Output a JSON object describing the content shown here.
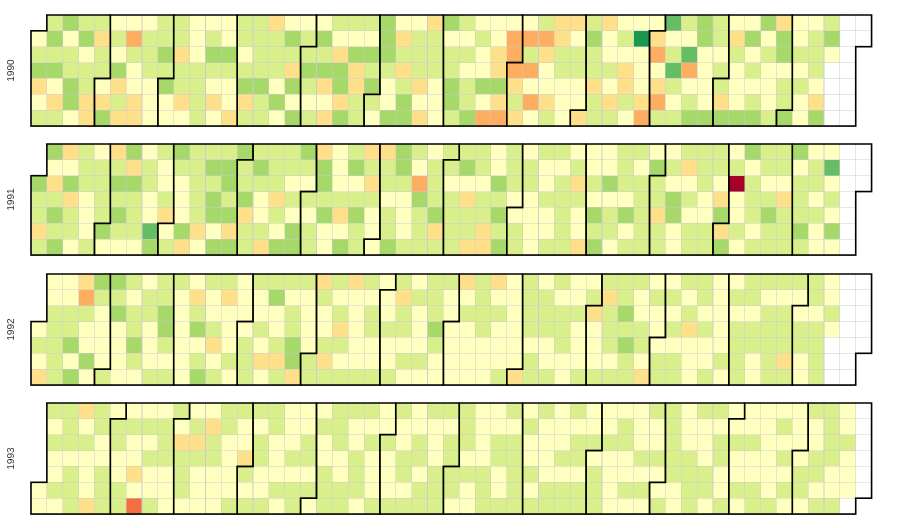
{
  "chart_data": {
    "type": "heatmap",
    "layout": "calendar",
    "first_year": 1990,
    "years": [
      "1990",
      "1991",
      "1992",
      "1993"
    ],
    "values_per_day": "percent change, one value per calendar day, listed January to December",
    "color_scale": {
      "domain": [
        -0.05,
        0.05
      ],
      "colors": [
        "#a50026",
        "#d73027",
        "#f46d43",
        "#fdae61",
        "#fee08b",
        "#ffffbf",
        "#d9ef8b",
        "#a6d96a",
        "#66bd63",
        "#1a9850",
        "#006837"
      ]
    },
    "series": [
      {
        "name": "1990",
        "values": "0.0045,0.0069,0.0137,-0.0135,-0.0023,0.0128,0.0129,0.0163,0.0123,0.0158,0.0032,-0.0094,0.0112,0.0163,0.0018,0.0058,0.0087,0.0154,0.0149,0.0014,0.0083,0.0160,0.0018,0.0114,0.0126,-0.0056,-0.0060,0.0126,-0.0129,0.0062,0.0079,0.0008,-0.0061,0.0157,0.0005,0.0128,-0.0016,0.0160,-0.0104,0.0085,-0.0061,0.0020,-0.0176,0.0133,-0.0024,0.0013,-0.0105,-0.0065,-0.0001,0.0096,0.0103,0.0125,-0.0034,-0.0021,0.0025,0.0059,0.0051,0.0166,0.0097,0.0143,-0.0020,0.0030,0.0050,0.0088,-0.0081,0.0062,0.0115,-0.0109,-0.0014,0.0003,0.0009,0.0030,0.0109,0.0093,0.0122,0.0132,-0.0027,0.0082,0.0151,0.0075,0.0003,-0.0096,0.0039,-0.0037,0.0042,0.0177,0.0101,-0.0020,0.0017,-0.0062,0.0111,0.0084,-0.0016,0.0114,0.0152,-0.0071,0.0134,0.0096,0.0072,0.0076,0.0064,0.0165,0.0097,0.0059,-0.0083,0.0131,0.0124,0.0111,-0.0041,0.0140,0.0017,0.0045,0.0172,0.0050,-0.0073,0.0176,-0.0019,0.0168,0.0026,0.0080,0.0063,0.0166,0.0085,0.0014,0.0079,-0.0027,0.0152,0.0092,0.0177,-0.0071,-0.0003,-0.0047,0.0133,-0.0029,-0.0090,0.0142,0.0176,-0.0056,0.0161,0.0079,0.0027,0.0147,-0.0066,-0.0075,0.0108,0.0052,0.0136,0.0006,0.0173,0.0099,0.0146,0.0054,0.0009,0.0140,0.0164,0.0159,0.0098,0.0043,0.0043,0.0159,0.0026,-0.0106,0.0089,-0.0050,0.0122,0.0144,0.0154,0.0013,0.0075,0.0059,0.0129,-0.0082,0.0005,-0.0066,-0.0052,0.0125,0.0082,0.0126,0.0034,0.0015,0.0010,0.0145,0.0011,0.0113,0.0069,0.0169,0.0171,0.0073,0.0131,0.0029,0.0054,-0.0021,0.0130,0.0084,0.0140,0.0012,0.0058,-0.0013,-0.0042,0.0173,-0.0001,-0.0146,0.0039,-0.0002,-0.0135,-0.0135,0.0144,-0.0058,-0.0152,0.0003,-0.0161,-0.0218,-0.0156,-0.0102,0.0059,-0.0084,-0.0031,-0.0199,0.0052,-0.0171,-0.0002,-0.0150,0.0032,0.0083,-0.0186,-0.0095,-0.0005,-0.0004,-0.0135,0.0108,-0.0136,-0.0101,0.0067,0.0113,-0.0031,-0.0040,0.0026,-0.0093,0.0015,0.0067,0.0136,-0.0004,0.0012,-0.0111,0.0118,0.0141,0.0102,0.0126,-0.0100,0.0098,0.0109,-0.0083,0.0009,0.0031,0.0064,0.0010,-0.0075,0.0110,-0.0005,0.0134,-0.0022,-0.0116,-0.0121,0.0130,-0.0041,0.0000,0.0330,0.0025,0.0017,-0.0017,-0.0094,-0.0211,-0.0035,-0.0133,-0.0144,0.0042,-0.0128,-0.0154,0.0073,0.0263,-0.0043,0.0085,0.0274,0.0086,-0.0021,0.0068,0.0077,0.0026,0.0300,-0.0176,0.0027,0.0109,0.0158,0.0170,0.0167,0.0034,0.0023,-0.0032,-0.0015,0.0149,0.0056,0.0110,0.0022,0.0072,0.0050,-0.0089,0.0150,0.0034,-0.0050,0.0130,0.0006,0.0013,-0.0033,0.0143,0.0006,0.0166,-0.0017,0.0105,0.0004,0.0124,0.0160,0.0180,-0.0045,0.0135,-0.0024,0.0011,0.0026,0.0074,-0.0064,0.0157,0.0178,0.0036,0.0096,0.0103,0.0179,0.0039,0.0043,0.0106,0.0006,0.0134,-0.0003,0.0013,0.0016,0.0130,0.0099,0.0066,0.0014,-0.0099,0.0170,0.0051,0.0156,-0.0032"
      },
      {
        "name": "1991",
        "values": "0.0164,0.0069,0.0116,-0.0087,0.0104,0.0153,0.0029,-0.0067,0.0062,0.0162,0.0086,0.0146,-0.0052,0.0030,0.0139,-0.0121,0.0125,0.0124,0.0036,0.0130,0.0056,0.0093,0.0019,0.0041,0.0001,0.0134,0.0031,0.0083,0.0101,0.0072,0.0066,0.0167,0.0002,-0.0073,0.0095,0.0142,0.0116,0.0141,0.0102,0.0039,0.0145,-0.0053,0.0148,0.0085,0.0127,0.0097,0.0024,-0.0003,0.0133,0.0057,0.0036,0.0009,0.0274,0.0151,0.0058,0.0032,0.0000,0.0106,-0.0074,0.0010,0.0105,0.0172,0.0081,0.0005,0.0004,0.0005,0.0171,-0.0073,0.0088,0.0126,0.0049,0.0093,0.0050,-0.0122,-0.0035,0.0130,0.0139,0.0132,0.0164,0.0177,0.0006,0.0149,0.0095,0.0161,0.0167,0.0102,0.0145,-0.0061,0.0169,0.0161,0.0064,0.0074,0.0159,-0.0112,0.0125,0.0071,0.0049,0.0160,0.0102,0.0021,-0.0015,0.0101,-0.0118,0.0063,0.0080,0.0100,-0.0117,0.0109,-0.0015,0.0147,0.0085,0.0096,0.0012,0.0064,0.0041,0.0159,0.0161,0.0142,0.0112,0.0032,0.0059,-0.0030,0.0092,0.0124,-0.0136,0.0169,0.0154,0.0114,0.0165,0.0030,0.0007,-0.0001,0.0025,0.0021,0.0121,-0.0053,0.0016,0.0166,0.0085,0.0145,0.0033,0.0078,0.0166,0.0126,0.0129,-0.0061,0.0104,-0.0046,0.0124,0.0014,0.0030,0.0043,-0.0080,0.0123,0.0103,0.0005,0.0047,0.0108,0.0172,0.0166,0.0138,0.0097,0.0037,0.0031,0.0007,0.0051,0.0111,0.0019,-0.0162,0.0160,0.0079,0.0134,0.0057,0.0027,0.0077,0.0076,0.0122,0.0149,-0.0053,0.0116,0.0104,0.0095,0.0000,0.0090,0.0109,0.0061,0.0110,0.0060,0.0149,0.0011,-0.0046,0.0107,0.0061,-0.0048,0.0087,0.0115,0.0025,0.0108,0.0109,-0.0051,-0.0087,0.0008,0.0019,0.0162,0.0073,0.0158,0.0125,0.0154,0.0122,0.0073,0.0118,0.0016,0.0011,0.0047,0.0125,0.0039,0.0102,0.0082,0.0018,0.0003,0.0019,-0.0033,0.0106,0.0016,0.0006,0.0092,-0.0011,0.0013,0.0133,0.0129,0.0004,0.0134,0.0101,0.0076,0.0112,0.0125,-0.0003,0.0069,-0.0091,0.0059,0.0008,-0.0032,-0.0047,0.0023,-0.0002,0.0136,0.0009,0.0163,0.0061,0.0139,-0.0039,0.0002,0.0146,0.0017,0.0054,0.0071,0.0041,0.0076,0.0124,0.0068,0.0012,0.0151,-0.0011,0.0100,0.0060,-0.0012,0.0134,0.0126,0.0075,0.0080,0.0093,-0.0011,0.0144,0.0057,0.0133,-0.0069,0.0058,0.0064,0.0001,0.0120,0.0031,0.0172,0.0149,0.0033,0.0003,0.0059,-0.0080,0.0026,0.0136,0.0015,0.0084,0.0116,0.0118,0.0075,0.0062,-0.0001,0.0039,0.0085,0.0085,0.0056,0.0075,0.0025,-0.0077,0.0146,-0.0061,0.0161,0.0022,0.0130,-0.0454,0.0013,-0.0034,0.0102,-0.0012,0.0161,0.0045,0.0058,0.0124,0.0114,0.0015,0.0054,0.0049,0.0089,-0.0025,0.0130,0.0151,0.0093,0.0098,0.0123,0.0123,0.0020,-0.0058,0.0093,0.0106,0.0097,0.0168,0.0013,0.0097,0.0131,0.0096,0.0145,0.0104,-0.0008,0.0130,0.0059,0.0039,0.0055,0.0008,0.0016,0.0001,0.0295,0.0009,0.0072,0.0007,0.0160,-0.0002"
      },
      {
        "name": "1992",
        "values": "0.0038,0.0108,-0.0008,-0.0049,0.0007,-0.0014,0.0055,0.0050,0.0123,0.0070,0.0073,-0.0013,-0.0017,0.0125,0.0091,0.0154,0.0040,0.0137,-0.0089,-0.0160,0.0132,0.0030,0.0040,0.0159,0.0041,0.0162,0.0133,-0.0008,0.0027,-0.0002,0.0037,0.0076,0.0153,0.0111,0.0170,0.0018,0.0037,0.0009,0.0037,0.0121,0.0009,0.0072,0.0088,0.0145,0.0059,0.0025,0.0026,0.0102,0.0072,0.0017,0.0040,0.0039,0.0064,0.0050,0.0108,0.0145,0.0153,0.0116,-0.0014,0.0049,0.0098,-0.0024,-0.0018,0.0045,-0.0003,-0.0002,0.0033,0.0033,-0.0064,0.0104,0.0165,0.0026,0.0067,0.0162,0.0111,0.0023,0.0017,0.0115,-0.0050,0.0025,0.0069,0.0122,-0.0066,0.0024,0.0034,0.0023,0.0105,0.0041,0.0043,0.0013,0.0043,0.0045,0.0063,0.0075,0.0111,0.0056,-0.0037,0.0036,0.0105,0.0023,-0.0049,0.0038,0.0049,0.0164,0.0041,0.0021,0.0086,-0.0133,0.0095,0.0068,0.0023,0.0111,0.0051,0.0142,0.0221,-0.0047,0.0095,0.0002,0.0033,-0.0015,0.0009,0.0121,0.0102,-0.0062,0.0072,0.0008,0.0003,0.0075,-0.0047,0.0048,0.0097,0.0004,0.0063,-0.0046,0.0101,0.0044,0.0083,-0.0048,0.0029,0.0023,0.0017,0.0010,-0.0032,0.0070,0.0093,-0.0016,0.0057,0.0088,-0.0005,0.0011,0.0052,0.0008,0.0044,0.0042,0.0111,0.0042,0.0009,0.0116,0.0124,-0.0083,0.0082,0.0061,0.0040,0.0058,0.0021,0.0014,0.0069,0.0037,0.0034,0.0021,0.0058,0.0006,0.0072,0.0122,0.0122,0.0137,0.0114,0.0012,0.0025,0.0053,0.0041,-0.0010,0.0010,0.0039,0.0005,0.0008,-0.0053,0.0033,0.0098,0.0041,0.0021,0.0007,0.0001,0.0057,0.0126,0.0079,0.0086,-0.0003,-0.0013,0.0036,-0.0050,0.0002,0.0074,0.0029,0.0015,0.0019,0.0128,0.0012,0.0044,0.0017,-0.0022,0.0023,0.0007,-0.0088,0.0112,0.0064,0.0114,0.0068,0.0034,0.0084,0.0077,-0.0041,0.0106,0.0079,0.0081,0.0022,0.0011,0.0088,0.0053,0.0033,0.0079,0.0119,0.0067,0.0037,0.0018,0.0031,-0.0027,0.0079,0.0013,0.0027,-0.0023,0.0101,0.0016,0.0050,-0.0063,0.0042,-0.0034,0.0021,0.0066,0.0102,-0.0061,0.0067,0.0061,0.0116,0.0036,0.0051,0.0059,0.0106,0.0167,0.0081,0.0143,0.0106,0.0113,0.0062,0.0035,0.0029,0.0077,0.0080,0.0036,-0.0056,0.0004,0.0110,-0.0013,0.0026,0.0040,0.0061,0.0104,0.0008,0.0105,0.0008,0.0095,0.0034,0.0062,0.0060,0.0047,0.0012,0.0097,-0.0119,0.0035,0.0041,0.0021,0.0114,0.0119,0.0031,0.0136,0.0014,0.0022,0.0132,0.0011,-0.0009,0.0038,0.0031,0.0041,0.0078,0.0025,-0.0040,0.0066,0.0021,0.0064,0.0075,0.0089,0.0099,0.0089,0.0062,0.0017,0.0058,0.0127,0.0017,-0.0020,0.0117,0.0001,0.0086,0.0084,0.0099,0.0070,0.0084,0.0064,0.0039,0.0094,0.0097,0.0122,-0.0062,0.0091,0.0117,0.0034,0.0045,0.0054,0.0084,0.0042,0.0008,0.0066,0.0121,0.0044,0.0066,0.0064,0.0054,0.0048,-0.0034,-0.0015,0.0094,-0.0007"
      },
      {
        "name": "1993",
        "values": "0.0003,0.0031,0.0077,0.0045,0.0079,-0.0041,0.0034,0.0104,-0.0004,0.0052,0.0063,0.0108,0.0021,0.0059,0.0085,0.0055,-0.0060,0.0045,0.0073,-0.0014,0.0036,0.0043,-0.0055,0.0102,0.0118,0.0012,0.0025,0.0085,0.0055,0.0091,0.0011,0.0073,0.0065,-0.0043,0.0013,0.0085,0.0053,-0.0024,0.0084,0.0004,-0.0023,-0.0089,0.0016,-0.0302,0.0039,0.0059,0.0029,0.0058,0.0040,0.0003,0.0078,0.0032,0.0055,0.0104,0.0094,0.0008,0.0033,0.0041,0.0070,0.0019,-0.0072,0.0052,0.0117,0.0129,0.0029,-0.0002,0.0072,-0.0054,0.0075,0.0043,0.0037,0.0004,0.0044,-0.0053,0.0083,0.0061,0.0030,0.0033,-0.0029,0.0065,0.0102,0.0010,0.0026,0.0034,-0.0030,0.0068,0.0056,0.0003,0.0040,-0.0051,0.0104,-0.0012,0.0101,0.0102,0.0044,0.0063,0.0069,-0.0008,0.0042,0.0052,0.0106,0.0072,0.0023,-0.0042,0.0038,0.0114,0.0017,0.0037,-0.0018,-0.0023,0.0074,0.0039,0.0060,0.0066,0.0039,-0.0011,0.0055,0.0136,0.0019,0.0057,0.0021,0.0025,0.0075,0.0036,0.0006,0.0055,0.0058,0.0049,0.0105,0.0053,0.0056,0.0013,0.0001,0.0069,0.0133,0.0060,0.0036,0.0006,0.0066,0.0087,0.0046,0.0032,0.0060,0.0028,0.0075,0.0042,0.0026,0.0027,0.0071,0.0000,0.0026,0.0051,0.0044,0.0020,0.0035,0.0064,0.0068,0.0035,0.0035,0.0060,0.0102,0.0044,0.0052,0.0040,0.0037,0.0066,0.0072,0.0025,0.0058,0.0048,0.0088,0.0026,0.0009,0.0044,0.0049,0.0109,0.0055,0.0052,0.0041,0.0049,0.0049,0.0062,0.0084,0.0038,0.0050,0.0075,0.0086,0.0044,0.0065,0.0040,0.0040,0.0032,0.0027,0.0002,0.0005,0.0104,0.0056,0.0063,0.0012,0.0029,0.0111,0.0046,0.0012,0.0028,0.0101,0.0054,-0.0030,0.0065,0.0059,0.0053,0.0067,0.0098,0.0041,0.0046,0.0034,0.0036,0.0090,0.0033,0.0064,0.0068,0.0042,0.0013,0.0003,-0.0016,0.0082,0.0052,0.0030,0.0021,0.0014,0.0084,0.0034,0.0074,0.0059,0.0047,0.0032,0.0051,0.0076,0.0030,0.0070,0.0052,0.0009,0.0005,0.0074,0.0024,0.0048,0.0053,0.0061,-0.0030,0.0035,0.0052,0.0035,0.0034,0.0030,0.0029,-0.0016,0.0053,0.0049,-0.0032,0.0036,0.0050,0.0008,-0.0015,0.0038,-0.0016,0.0080,0.0025,0.0094,0.0005,0.0069,0.0016,0.0033,0.0071,0.0035,0.0038,0.0060,0.0059,0.0093,0.0050,0.0066,0.0069,0.0028,-0.0038,0.0042,0.0015,0.0030,0.0051,0.0070,0.0069,0.0054,0.0054,0.0011,0.0040,0.0032,0.0061,0.0068,0.0040,0.0047,0.0029,0.0048,0.0055,0.0026,0.0021,0.0047,0.0042,0.0020,0.0066,0.0005,0.0020,0.0054,0.0027,0.0021,0.0035,0.0071,0.0044,-0.0002,0.0050,0.0082,0.0045,0.0031,0.0038,0.0034,-0.0021,0.0043,0.0061,0.0044,0.0059,0.0041,0.0052,0.0025,0.0069,0.0019,0.0033,0.0038,0.0040,-0.0003,0.0070,0.0070,0.0017,0.0061,0.0042,0.0045,0.0070,0.0052,0.0041,0.0074,0.0046,0.0047,0.0056,0.0068,0.0016,0.0038,0.0054,0.0042,0.0025,0.0065,0.0003,0.0035,0.0042"
      }
    ]
  }
}
